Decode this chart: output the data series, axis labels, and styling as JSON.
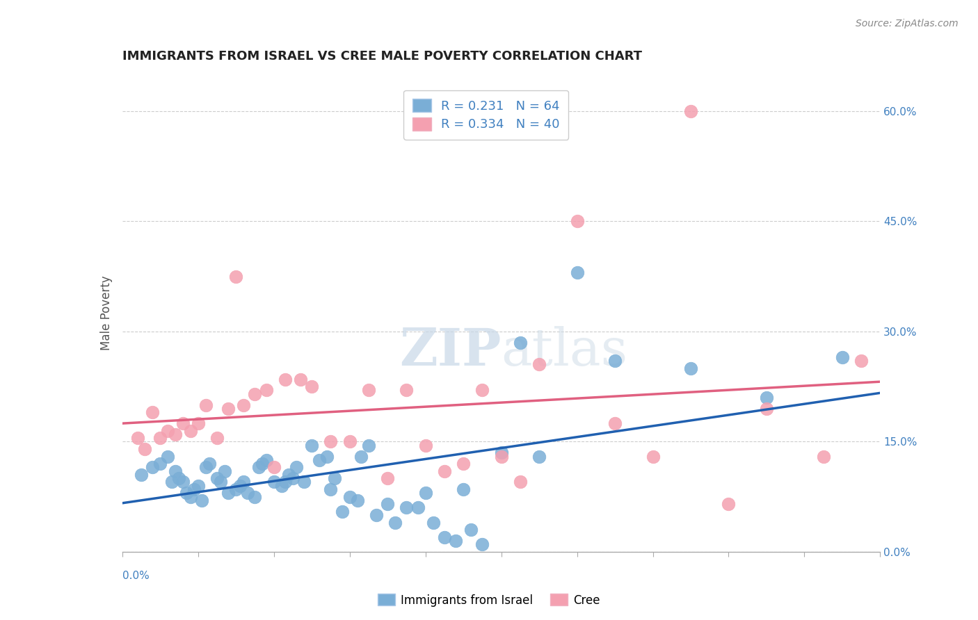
{
  "title": "IMMIGRANTS FROM ISRAEL VS CREE MALE POVERTY CORRELATION CHART",
  "source": "Source: ZipAtlas.com",
  "ylabel": "Male Poverty",
  "ytick_labels": [
    "0.0%",
    "15.0%",
    "30.0%",
    "45.0%",
    "60.0%"
  ],
  "ytick_values": [
    0.0,
    0.15,
    0.3,
    0.45,
    0.6
  ],
  "xlim": [
    0.0,
    0.2
  ],
  "ylim": [
    0.0,
    0.65
  ],
  "blue_R": 0.231,
  "blue_N": 64,
  "pink_R": 0.334,
  "pink_N": 40,
  "blue_color": "#7aaed6",
  "pink_color": "#f4a0b0",
  "blue_line_color": "#2060b0",
  "pink_line_color": "#e06080",
  "watermark_zip": "ZIP",
  "watermark_atlas": "atlas",
  "background_color": "#ffffff",
  "grid_color": "#cccccc",
  "blue_scatter_x": [
    0.005,
    0.008,
    0.01,
    0.012,
    0.013,
    0.014,
    0.015,
    0.016,
    0.017,
    0.018,
    0.019,
    0.02,
    0.021,
    0.022,
    0.023,
    0.025,
    0.026,
    0.027,
    0.028,
    0.03,
    0.031,
    0.032,
    0.033,
    0.035,
    0.036,
    0.037,
    0.038,
    0.04,
    0.042,
    0.043,
    0.044,
    0.045,
    0.046,
    0.048,
    0.05,
    0.052,
    0.054,
    0.055,
    0.056,
    0.058,
    0.06,
    0.062,
    0.063,
    0.065,
    0.067,
    0.07,
    0.072,
    0.075,
    0.078,
    0.08,
    0.082,
    0.085,
    0.088,
    0.09,
    0.092,
    0.095,
    0.1,
    0.105,
    0.11,
    0.12,
    0.13,
    0.15,
    0.17,
    0.19
  ],
  "blue_scatter_y": [
    0.105,
    0.115,
    0.12,
    0.13,
    0.095,
    0.11,
    0.1,
    0.095,
    0.08,
    0.075,
    0.085,
    0.09,
    0.07,
    0.115,
    0.12,
    0.1,
    0.095,
    0.11,
    0.08,
    0.085,
    0.09,
    0.095,
    0.08,
    0.075,
    0.115,
    0.12,
    0.125,
    0.095,
    0.09,
    0.095,
    0.105,
    0.1,
    0.115,
    0.095,
    0.145,
    0.125,
    0.13,
    0.085,
    0.1,
    0.055,
    0.075,
    0.07,
    0.13,
    0.145,
    0.05,
    0.065,
    0.04,
    0.06,
    0.06,
    0.08,
    0.04,
    0.02,
    0.015,
    0.085,
    0.03,
    0.01,
    0.135,
    0.285,
    0.13,
    0.38,
    0.26,
    0.25,
    0.21,
    0.265
  ],
  "pink_scatter_x": [
    0.004,
    0.006,
    0.008,
    0.01,
    0.012,
    0.014,
    0.016,
    0.018,
    0.02,
    0.022,
    0.025,
    0.028,
    0.03,
    0.032,
    0.035,
    0.038,
    0.04,
    0.043,
    0.047,
    0.05,
    0.055,
    0.06,
    0.065,
    0.07,
    0.075,
    0.08,
    0.085,
    0.09,
    0.095,
    0.1,
    0.105,
    0.11,
    0.12,
    0.13,
    0.14,
    0.15,
    0.16,
    0.17,
    0.185,
    0.195
  ],
  "pink_scatter_y": [
    0.155,
    0.14,
    0.19,
    0.155,
    0.165,
    0.16,
    0.175,
    0.165,
    0.175,
    0.2,
    0.155,
    0.195,
    0.375,
    0.2,
    0.215,
    0.22,
    0.115,
    0.235,
    0.235,
    0.225,
    0.15,
    0.15,
    0.22,
    0.1,
    0.22,
    0.145,
    0.11,
    0.12,
    0.22,
    0.13,
    0.095,
    0.255,
    0.45,
    0.175,
    0.13,
    0.6,
    0.065,
    0.195,
    0.13,
    0.26
  ]
}
